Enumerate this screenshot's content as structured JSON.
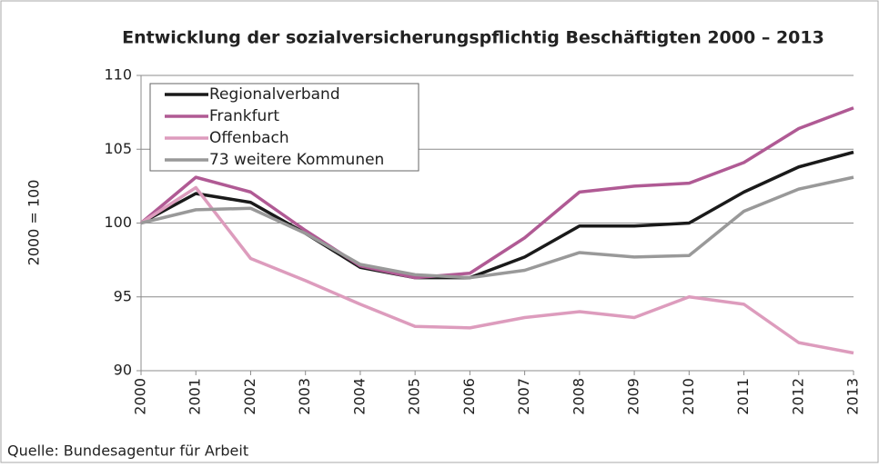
{
  "chart_data": {
    "type": "line",
    "title": "Entwicklung der sozialversicherungspflichtig Beschäftigten 2000 – 2013",
    "y_label": "2000 = 100",
    "source": "Quelle: Bundesagentur für Arbeit",
    "categories": [
      "2000",
      "2001",
      "2002",
      "2003",
      "2004",
      "2005",
      "2006",
      "2007",
      "2008",
      "2009",
      "2010",
      "2011",
      "2012",
      "2013"
    ],
    "series": [
      {
        "name": "Regionalverband",
        "color": "#1a1a1a",
        "values": [
          100,
          102.0,
          101.4,
          99.3,
          97.0,
          96.3,
          96.3,
          97.7,
          99.8,
          99.8,
          100.0,
          102.1,
          103.8,
          104.8
        ]
      },
      {
        "name": "Frankfurt",
        "color": "#b05a94",
        "values": [
          100,
          103.1,
          102.1,
          99.5,
          97.1,
          96.3,
          96.6,
          99.0,
          102.1,
          102.5,
          102.7,
          104.1,
          106.4,
          107.8
        ]
      },
      {
        "name": "Offenbach",
        "color": "#dd9cbd",
        "values": [
          100,
          102.4,
          97.6,
          96.1,
          94.5,
          93.0,
          92.9,
          93.6,
          94.0,
          93.6,
          95.0,
          94.5,
          91.9,
          91.2
        ]
      },
      {
        "name": "73 weitere Kommunen",
        "color": "#999999",
        "values": [
          100,
          100.9,
          101.0,
          99.3,
          97.2,
          96.5,
          96.3,
          96.8,
          98.0,
          97.7,
          97.8,
          100.8,
          102.3,
          103.1
        ]
      }
    ],
    "ylim": [
      90,
      110
    ],
    "yticks": [
      90,
      95,
      100,
      105,
      110
    ],
    "grid": true,
    "legend": "top-left"
  }
}
